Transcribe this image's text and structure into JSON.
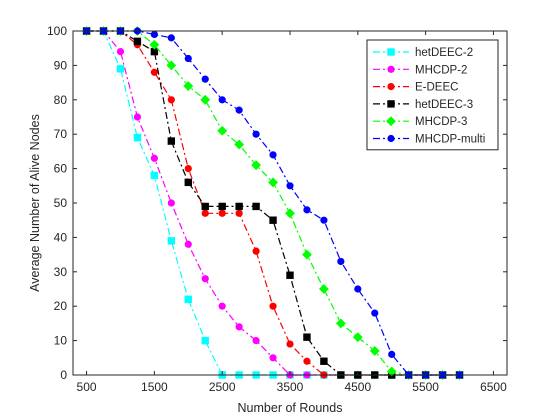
{
  "chart_data": {
    "type": "line",
    "title": "",
    "xlabel": "Number of Rounds",
    "ylabel": "Average Number of Alive Nodes",
    "xlim": [
      300,
      6700
    ],
    "ylim": [
      0,
      100
    ],
    "xticks": [
      500,
      1500,
      2500,
      3500,
      4500,
      5500,
      6500
    ],
    "yticks": [
      0,
      10,
      20,
      30,
      40,
      50,
      60,
      70,
      80,
      90,
      100
    ],
    "grid": false,
    "legend_position": "top-right",
    "x": [
      500,
      750,
      1000,
      1250,
      1500,
      1750,
      2000,
      2250,
      2500,
      2750,
      3000,
      3250,
      3500,
      3750,
      4000,
      4250,
      4500,
      4750,
      5000,
      5250,
      5500,
      5750,
      6000
    ],
    "series": [
      {
        "name": "hetDEEC-2",
        "color": "#00ffff",
        "marker": "square",
        "values": [
          100,
          100,
          89,
          69,
          58,
          39,
          22,
          10,
          0,
          0,
          0,
          0,
          0,
          0,
          0,
          0,
          0,
          0,
          0,
          0,
          0,
          0,
          0
        ]
      },
      {
        "name": "MHCDP-2",
        "color": "#ff00ff",
        "marker": "circle",
        "values": [
          100,
          100,
          94,
          75,
          63,
          50,
          38,
          28,
          20,
          14,
          10,
          5,
          0,
          0,
          0,
          0,
          0,
          0,
          0,
          0,
          0,
          0,
          0
        ]
      },
      {
        "name": "E-DEEC",
        "color": "#ff0000",
        "marker": "circle",
        "values": [
          100,
          100,
          100,
          96,
          88,
          80,
          60,
          47,
          47,
          47,
          36,
          20,
          9,
          4,
          0,
          0,
          0,
          0,
          0,
          0,
          0,
          0,
          0
        ]
      },
      {
        "name": "hetDEEC-3",
        "color": "#000000",
        "marker": "square",
        "values": [
          100,
          100,
          100,
          97,
          94,
          68,
          56,
          49,
          49,
          49,
          49,
          45,
          29,
          11,
          4,
          0,
          0,
          0,
          0,
          0,
          0,
          0,
          0
        ]
      },
      {
        "name": "MHCDP-3",
        "color": "#00ff00",
        "marker": "diamond",
        "values": [
          100,
          100,
          100,
          100,
          96,
          90,
          84,
          80,
          71,
          67,
          61,
          56,
          47,
          35,
          25,
          15,
          11,
          7,
          1,
          0,
          0,
          0,
          0
        ]
      },
      {
        "name": "MHCDP-multi",
        "color": "#0000ff",
        "marker": "circle",
        "values": [
          100,
          100,
          100,
          100,
          99,
          98,
          92,
          86,
          80,
          77,
          70,
          64,
          55,
          48,
          45,
          33,
          25,
          18,
          6,
          0,
          0,
          0,
          0
        ]
      }
    ]
  }
}
